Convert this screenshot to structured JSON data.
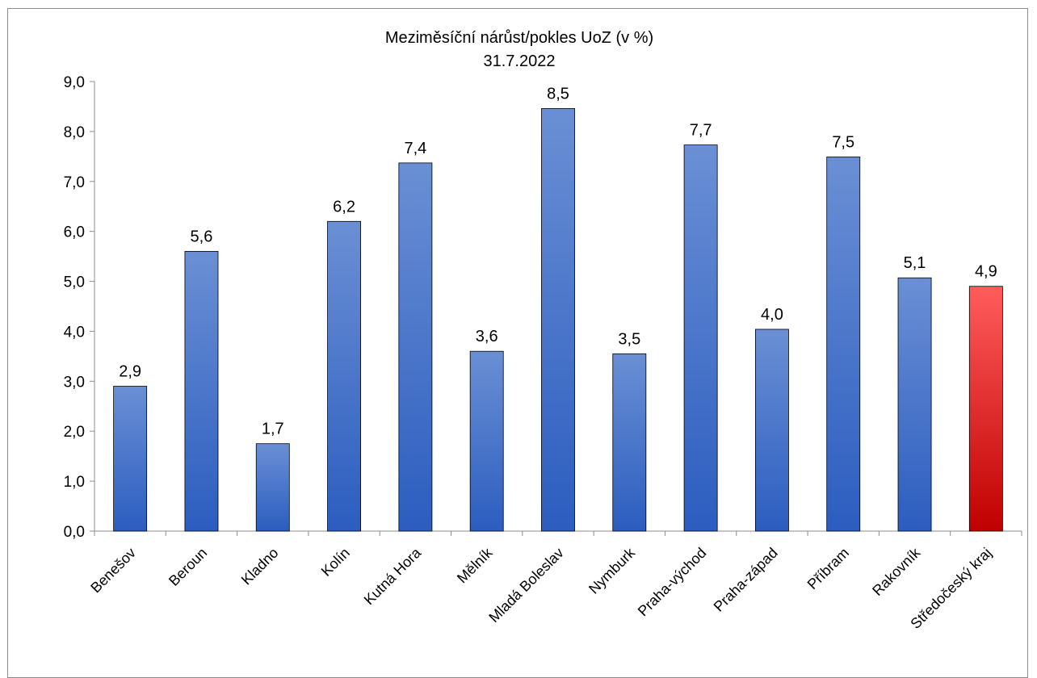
{
  "chart_data": {
    "type": "bar",
    "title": "Meziměsíční nárůst/pokles UoZ (v %)",
    "subtitle": "31.7.2022",
    "xlabel": "",
    "ylabel": "",
    "ylim": [
      0,
      9
    ],
    "yticks": [
      "0,0",
      "1,0",
      "2,0",
      "3,0",
      "4,0",
      "5,0",
      "6,0",
      "7,0",
      "8,0",
      "9,0"
    ],
    "grid": false,
    "categories": [
      "Benešov",
      "Beroun",
      "Kladno",
      "Kolín",
      "Kutná Hora",
      "Mělník",
      "Mladá Boleslav",
      "Nymburk",
      "Praha-východ",
      "Praha-západ",
      "Příbram",
      "Rakovník",
      "Středočeský kraj"
    ],
    "values": [
      2.9,
      5.6,
      1.75,
      6.2,
      7.37,
      3.6,
      8.46,
      3.55,
      7.73,
      4.04,
      7.49,
      5.07,
      4.9
    ],
    "data_labels": [
      "2,9",
      "5,6",
      "1,7",
      "6,2",
      "7,4",
      "3,6",
      "8,5",
      "3,5",
      "7,7",
      "4,0",
      "7,5",
      "5,1",
      "4,9"
    ],
    "colors": {
      "bar_top": "#6a8fd4",
      "bar_bottom": "#2c5dbf",
      "highlight_top": "#ff5c5c",
      "highlight_bottom": "#c00000",
      "highlight_index": 12
    }
  }
}
